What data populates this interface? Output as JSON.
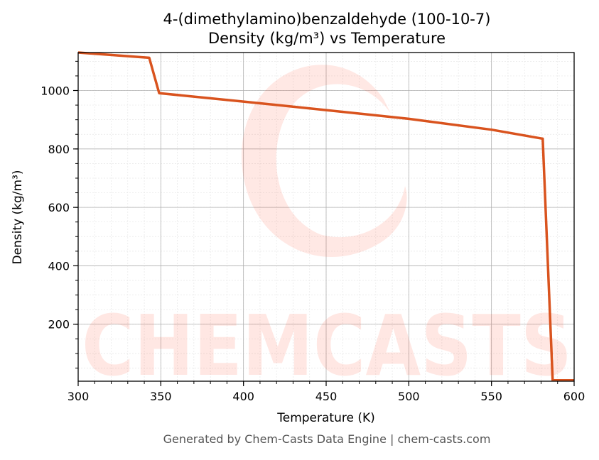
{
  "chart_data": {
    "type": "line",
    "title": "4-(dimethylamino)benzaldehyde (100-10-7)",
    "subtitle": "Density (kg/m³) vs Temperature",
    "xlabel": "Temperature (K)",
    "ylabel": "Density (kg/m³)",
    "xlim": [
      300,
      600
    ],
    "ylim": [
      5,
      1130
    ],
    "x_ticks": [
      300,
      350,
      400,
      450,
      500,
      550,
      600
    ],
    "y_ticks": [
      200,
      400,
      600,
      800,
      1000
    ],
    "grid": true,
    "line_color": "#d9531e",
    "series": [
      {
        "x": [
          300,
          343,
          349,
          400,
          450,
          500,
          550,
          581,
          587,
          600
        ],
        "y": [
          1130,
          1112,
          991,
          962,
          933,
          903,
          866,
          835,
          8,
          8
        ]
      }
    ]
  },
  "watermark": "CHEMCASTS",
  "footer": "Generated by Chem-Casts Data Engine | chem-casts.com"
}
